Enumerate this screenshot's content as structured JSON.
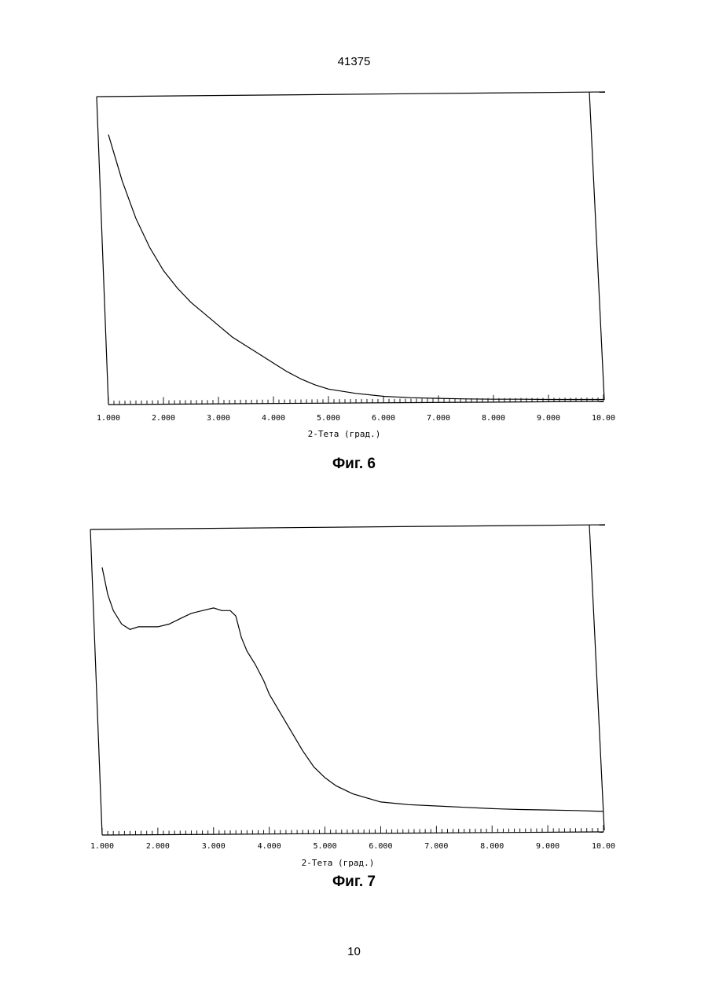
{
  "page": {
    "doc_number": "41375",
    "page_number": "10"
  },
  "chart_data": [
    {
      "type": "line",
      "caption": "Фиг. 6",
      "xlabel": "2-Тета (град.)",
      "ylabel": "",
      "xlim": [
        1.0,
        10.0
      ],
      "ylim": [
        0,
        1
      ],
      "x_ticks": [
        "1.000",
        "2.000",
        "3.000",
        "4.000",
        "5.000",
        "6.000",
        "7.000",
        "8.000",
        "9.000",
        "10.00"
      ],
      "grid": false,
      "x": [
        1.0,
        1.25,
        1.5,
        1.75,
        2.0,
        2.25,
        2.5,
        2.75,
        3.0,
        3.25,
        3.5,
        3.75,
        4.0,
        4.25,
        4.5,
        4.75,
        5.0,
        5.5,
        6.0,
        6.5,
        7.0,
        7.5,
        8.0,
        8.5,
        9.0,
        9.5,
        10.0
      ],
      "y": [
        0.92,
        0.76,
        0.63,
        0.53,
        0.45,
        0.39,
        0.34,
        0.3,
        0.26,
        0.22,
        0.19,
        0.16,
        0.13,
        0.1,
        0.075,
        0.055,
        0.04,
        0.025,
        0.015,
        0.01,
        0.008,
        0.006,
        0.005,
        0.005,
        0.004,
        0.004,
        0.004
      ]
    },
    {
      "type": "line",
      "caption": "Фиг. 7",
      "xlabel": "2-Тета (град.)",
      "ylabel": "",
      "xlim": [
        1.0,
        10.0
      ],
      "ylim": [
        0,
        1
      ],
      "x_ticks": [
        "1.000",
        "2.000",
        "3.000",
        "4.000",
        "5.000",
        "6.000",
        "7.000",
        "8.000",
        "9.000",
        "10.00"
      ],
      "grid": false,
      "x": [
        1.0,
        1.1,
        1.2,
        1.35,
        1.5,
        1.65,
        1.8,
        2.0,
        2.2,
        2.4,
        2.6,
        2.8,
        3.0,
        3.15,
        3.3,
        3.4,
        3.5,
        3.6,
        3.75,
        3.9,
        4.0,
        4.2,
        4.4,
        4.6,
        4.8,
        5.0,
        5.2,
        5.5,
        6.0,
        6.5,
        7.0,
        7.5,
        8.0,
        8.5,
        9.0,
        9.5,
        10.0
      ],
      "y": [
        0.92,
        0.82,
        0.76,
        0.71,
        0.69,
        0.7,
        0.7,
        0.7,
        0.71,
        0.73,
        0.75,
        0.76,
        0.77,
        0.76,
        0.76,
        0.74,
        0.66,
        0.61,
        0.56,
        0.5,
        0.45,
        0.38,
        0.31,
        0.24,
        0.18,
        0.14,
        0.11,
        0.08,
        0.05,
        0.04,
        0.035,
        0.03,
        0.025,
        0.022,
        0.02,
        0.018,
        0.015
      ]
    }
  ]
}
